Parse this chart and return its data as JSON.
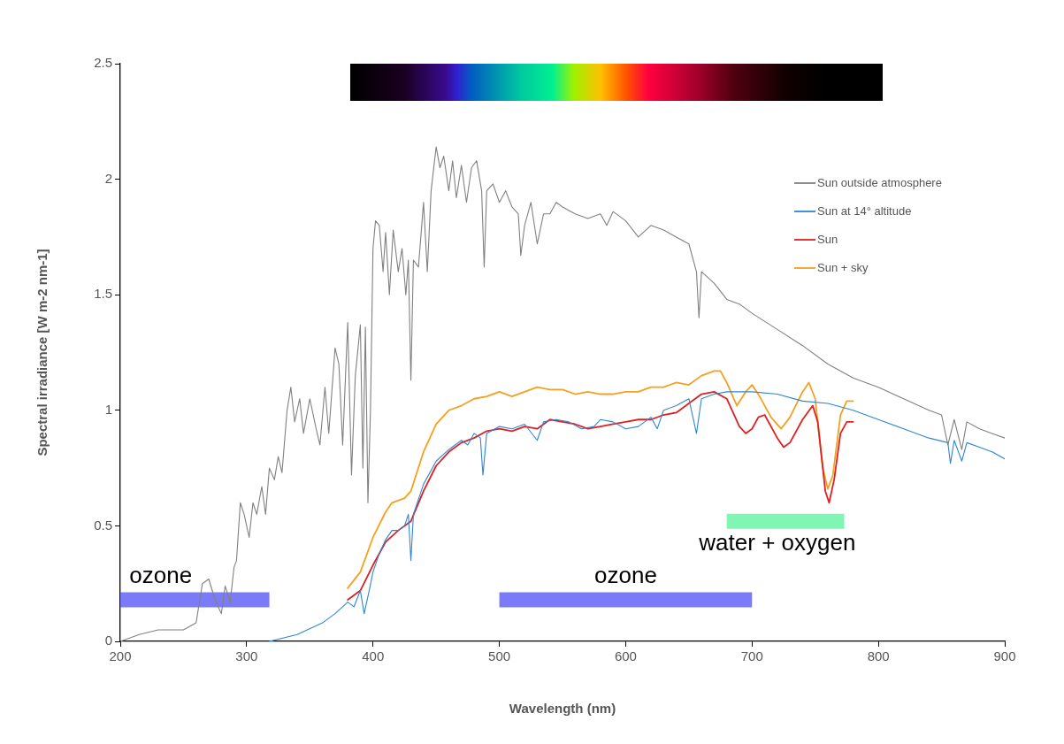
{
  "chart_data": {
    "type": "line",
    "xlabel": "Wavelength (nm)",
    "ylabel": "Spectral irradiance [W m-2 nm-1]",
    "xlim": [
      200,
      900
    ],
    "xticks": [
      200,
      300,
      400,
      500,
      600,
      700,
      800,
      900
    ],
    "ylim": [
      0,
      2.5
    ],
    "yticks": [
      0,
      0.5,
      1,
      1.5,
      2,
      2.5
    ],
    "grid": false,
    "legend": "top right",
    "marker": "none",
    "line_style": "solid",
    "series": [
      {
        "name": "Sun outside atmosphere",
        "color": "#808080",
        "x": [
          200,
          215,
          230,
          250,
          260,
          265,
          270,
          275,
          280,
          283,
          287,
          290,
          292,
          295,
          298,
          302,
          305,
          308,
          312,
          315,
          318,
          322,
          325,
          328,
          332,
          335,
          338,
          342,
          345,
          350,
          355,
          358,
          362,
          365,
          370,
          373,
          376,
          380,
          383,
          386,
          390,
          392,
          394,
          396,
          398,
          400,
          402,
          405,
          408,
          410,
          413,
          416,
          420,
          423,
          426,
          428,
          430,
          432,
          436,
          440,
          443,
          446,
          450,
          453,
          456,
          460,
          463,
          466,
          470,
          474,
          478,
          482,
          486,
          488,
          490,
          495,
          500,
          505,
          510,
          515,
          517,
          520,
          525,
          530,
          535,
          540,
          545,
          550,
          560,
          570,
          580,
          585,
          590,
          600,
          610,
          620,
          630,
          640,
          650,
          656,
          658,
          660,
          670,
          680,
          690,
          700,
          720,
          740,
          760,
          780,
          800,
          820,
          840,
          850,
          855,
          860,
          866,
          870,
          880,
          890,
          900
        ],
        "values": [
          0.0,
          0.03,
          0.05,
          0.05,
          0.08,
          0.25,
          0.27,
          0.18,
          0.12,
          0.24,
          0.17,
          0.32,
          0.35,
          0.6,
          0.55,
          0.45,
          0.6,
          0.55,
          0.67,
          0.55,
          0.75,
          0.7,
          0.8,
          0.73,
          1.0,
          1.1,
          0.95,
          1.05,
          0.9,
          1.05,
          0.92,
          0.85,
          1.1,
          0.9,
          1.27,
          1.2,
          0.85,
          1.38,
          0.72,
          1.15,
          1.37,
          0.75,
          1.36,
          0.6,
          1.0,
          1.7,
          1.82,
          1.8,
          1.6,
          1.77,
          1.5,
          1.78,
          1.6,
          1.7,
          1.5,
          1.65,
          1.13,
          1.65,
          1.62,
          1.9,
          1.6,
          1.95,
          2.14,
          2.05,
          2.1,
          1.95,
          2.08,
          1.92,
          2.06,
          1.9,
          2.05,
          2.08,
          1.95,
          1.62,
          1.95,
          1.98,
          1.9,
          1.95,
          1.88,
          1.85,
          1.67,
          1.8,
          1.9,
          1.72,
          1.85,
          1.85,
          1.9,
          1.88,
          1.85,
          1.83,
          1.85,
          1.8,
          1.86,
          1.82,
          1.75,
          1.8,
          1.78,
          1.75,
          1.72,
          1.6,
          1.4,
          1.6,
          1.55,
          1.48,
          1.46,
          1.42,
          1.35,
          1.28,
          1.2,
          1.14,
          1.1,
          1.05,
          1.0,
          0.98,
          0.85,
          0.96,
          0.83,
          0.95,
          0.92,
          0.9,
          0.88
        ]
      },
      {
        "name": "Sun at 14° altitude",
        "color": "#2e86d4",
        "x": [
          318,
          340,
          360,
          370,
          380,
          385,
          390,
          393,
          397,
          400,
          405,
          410,
          415,
          420,
          425,
          428,
          430,
          432,
          440,
          450,
          460,
          470,
          475,
          480,
          485,
          487,
          490,
          500,
          510,
          520,
          530,
          535,
          545,
          555,
          565,
          575,
          580,
          590,
          600,
          610,
          620,
          625,
          630,
          640,
          650,
          656,
          660,
          670,
          680,
          700,
          720,
          740,
          760,
          780,
          800,
          820,
          840,
          855,
          857,
          860,
          866,
          870,
          880,
          890,
          900
        ],
        "values": [
          0,
          0.03,
          0.08,
          0.12,
          0.17,
          0.15,
          0.22,
          0.12,
          0.22,
          0.3,
          0.38,
          0.44,
          0.48,
          0.48,
          0.5,
          0.55,
          0.35,
          0.55,
          0.68,
          0.78,
          0.83,
          0.87,
          0.85,
          0.9,
          0.88,
          0.72,
          0.9,
          0.93,
          0.92,
          0.94,
          0.87,
          0.95,
          0.96,
          0.95,
          0.92,
          0.93,
          0.96,
          0.95,
          0.92,
          0.93,
          0.97,
          0.92,
          1.0,
          1.02,
          1.05,
          0.9,
          1.05,
          1.07,
          1.08,
          1.08,
          1.07,
          1.04,
          1.03,
          1.0,
          0.96,
          0.92,
          0.88,
          0.86,
          0.77,
          0.87,
          0.78,
          0.86,
          0.84,
          0.82,
          0.79
        ]
      },
      {
        "name": "Sun",
        "color": "#e02020",
        "x": [
          380,
          390,
          400,
          410,
          420,
          430,
          440,
          450,
          460,
          470,
          480,
          490,
          500,
          510,
          520,
          530,
          540,
          550,
          560,
          570,
          580,
          590,
          600,
          610,
          620,
          630,
          640,
          650,
          660,
          670,
          680,
          690,
          695,
          700,
          705,
          710,
          720,
          725,
          730,
          740,
          748,
          752,
          758,
          761,
          765,
          770,
          775,
          780
        ],
        "values": [
          0.18,
          0.22,
          0.33,
          0.43,
          0.48,
          0.52,
          0.65,
          0.76,
          0.82,
          0.86,
          0.88,
          0.91,
          0.92,
          0.91,
          0.93,
          0.92,
          0.96,
          0.95,
          0.94,
          0.92,
          0.93,
          0.94,
          0.95,
          0.96,
          0.96,
          0.98,
          0.99,
          1.03,
          1.07,
          1.08,
          1.05,
          0.93,
          0.9,
          0.92,
          0.97,
          0.98,
          0.88,
          0.84,
          0.86,
          0.96,
          1.02,
          0.95,
          0.65,
          0.6,
          0.7,
          0.9,
          0.95,
          0.95
        ]
      },
      {
        "name": "Sun + sky",
        "color": "#f5a020",
        "x": [
          380,
          390,
          400,
          410,
          415,
          425,
          430,
          440,
          450,
          460,
          470,
          480,
          490,
          500,
          510,
          520,
          530,
          540,
          550,
          560,
          570,
          580,
          590,
          600,
          610,
          620,
          630,
          640,
          650,
          660,
          670,
          675,
          680,
          688,
          695,
          700,
          706,
          715,
          723,
          730,
          740,
          745,
          750,
          756,
          760,
          764,
          770,
          775,
          780
        ],
        "values": [
          0.23,
          0.3,
          0.45,
          0.56,
          0.6,
          0.62,
          0.65,
          0.82,
          0.94,
          1.0,
          1.02,
          1.05,
          1.06,
          1.08,
          1.06,
          1.08,
          1.1,
          1.09,
          1.09,
          1.07,
          1.08,
          1.07,
          1.07,
          1.08,
          1.08,
          1.1,
          1.1,
          1.12,
          1.11,
          1.15,
          1.17,
          1.17,
          1.12,
          1.02,
          1.08,
          1.11,
          1.06,
          0.97,
          0.92,
          0.97,
          1.08,
          1.12,
          1.05,
          0.75,
          0.66,
          0.72,
          0.98,
          1.04,
          1.04
        ]
      },
      {
        "color": "#7b7bf7",
        "x": [
          200,
          232,
          318
        ],
        "values": [
          0.18,
          0.18,
          0.18
        ]
      },
      {
        "color": "#7b7bf7",
        "x": [
          500,
          600,
          700
        ],
        "values": [
          0.18,
          0.18,
          0.18
        ]
      },
      {
        "color": "#80f5b4",
        "x": [
          680,
          720,
          773
        ],
        "values": [
          0.52,
          0.52,
          0.52
        ]
      }
    ],
    "annotations": [
      {
        "text": "ozone",
        "x": 232,
        "y": 0.18
      },
      {
        "text": "ozone",
        "x": 600,
        "y": 0.18
      },
      {
        "text": "water + oxygen",
        "x": 720,
        "y": 0.52
      }
    ]
  }
}
